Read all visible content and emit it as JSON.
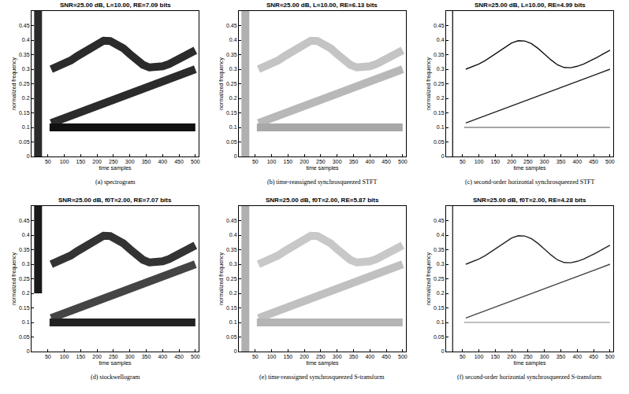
{
  "chart_data": [
    {
      "type": "line",
      "title": "SNR=25.00 dB, L=10.00, RE=7.09 bits",
      "caption": "(a) spectrogram",
      "x_label": "time samples",
      "y_label": "normalized frequency",
      "line_style": "broad",
      "grid": false,
      "xlim": [
        0,
        510
      ],
      "ylim": [
        0,
        0.5
      ],
      "xticks": [
        50,
        100,
        150,
        200,
        250,
        300,
        350,
        400,
        450,
        500
      ],
      "yticks": [
        0,
        0.05,
        0.1,
        0.15,
        0.2,
        0.25,
        0.3,
        0.35,
        0.4,
        0.45
      ],
      "series": [
        {
          "color": "#2b2b2b",
          "x": [
            20,
            20
          ],
          "values": [
            0,
            0.5
          ]
        },
        {
          "color": "#2b2b2b",
          "x": [
            60,
            80,
            100,
            120,
            140,
            160,
            180,
            200,
            220,
            240,
            260,
            280,
            300,
            320,
            340,
            360,
            380,
            400,
            420,
            440,
            460,
            480,
            500
          ],
          "values": [
            0.3,
            0.308,
            0.318,
            0.33,
            0.345,
            0.36,
            0.375,
            0.39,
            0.398,
            0.397,
            0.388,
            0.372,
            0.352,
            0.332,
            0.315,
            0.306,
            0.305,
            0.31,
            0.318,
            0.328,
            0.34,
            0.353,
            0.365
          ]
        },
        {
          "color": "#2b2b2b",
          "x": [
            60,
            500
          ],
          "values": [
            0.115,
            0.3
          ]
        },
        {
          "color": "#111111",
          "x": [
            55,
            500
          ],
          "values": [
            0.1,
            0.1
          ]
        }
      ]
    },
    {
      "type": "line",
      "title": "SNR=25.00 dB, L=10.00, RE=6.13 bits",
      "caption": "(b) time-reassigned synchrosqueezed STFT",
      "x_label": "time samples",
      "y_label": "normalized frequency",
      "line_style": "broad",
      "grid": false,
      "xlim": [
        0,
        510
      ],
      "ylim": [
        0,
        0.5
      ],
      "xticks": [
        50,
        100,
        150,
        200,
        250,
        300,
        350,
        400,
        450,
        500
      ],
      "yticks": [
        0,
        0.05,
        0.1,
        0.15,
        0.2,
        0.25,
        0.3,
        0.35,
        0.4,
        0.45
      ],
      "series": [
        {
          "color": "#b0b0b0",
          "x": [
            20,
            20
          ],
          "values": [
            0,
            0.5
          ]
        },
        {
          "color": "#c4c4c4",
          "x": [
            60,
            80,
            100,
            120,
            140,
            160,
            180,
            200,
            220,
            240,
            260,
            280,
            300,
            320,
            340,
            360,
            380,
            400,
            420,
            440,
            460,
            480,
            500
          ],
          "values": [
            0.3,
            0.308,
            0.318,
            0.33,
            0.345,
            0.36,
            0.375,
            0.39,
            0.398,
            0.397,
            0.388,
            0.372,
            0.352,
            0.332,
            0.315,
            0.306,
            0.305,
            0.31,
            0.318,
            0.328,
            0.34,
            0.353,
            0.365
          ]
        },
        {
          "color": "#b8b8b8",
          "x": [
            60,
            500
          ],
          "values": [
            0.115,
            0.3
          ]
        },
        {
          "color": "#a8a8a8",
          "x": [
            55,
            500
          ],
          "values": [
            0.1,
            0.1
          ]
        }
      ]
    },
    {
      "type": "line",
      "title": "SNR=25.00 dB, L=10.00, RE=4.99 bits",
      "caption": "(c) second-order horizontal synchrosqueezed STFT",
      "x_label": "time samples",
      "y_label": "normalized frequency",
      "line_style": "fine",
      "grid": false,
      "xlim": [
        0,
        510
      ],
      "ylim": [
        0,
        0.5
      ],
      "xticks": [
        50,
        100,
        150,
        200,
        250,
        300,
        350,
        400,
        450,
        500
      ],
      "yticks": [
        0,
        0.05,
        0.1,
        0.15,
        0.2,
        0.25,
        0.3,
        0.35,
        0.4,
        0.45
      ],
      "series": [
        {
          "color": "#222222",
          "x": [
            20,
            20
          ],
          "values": [
            0,
            0.5
          ]
        },
        {
          "color": "#111111",
          "x": [
            60,
            80,
            100,
            120,
            140,
            160,
            180,
            200,
            220,
            240,
            260,
            280,
            300,
            320,
            340,
            360,
            380,
            400,
            420,
            440,
            460,
            480,
            500
          ],
          "values": [
            0.3,
            0.308,
            0.318,
            0.33,
            0.345,
            0.36,
            0.375,
            0.39,
            0.398,
            0.397,
            0.388,
            0.372,
            0.352,
            0.332,
            0.315,
            0.306,
            0.305,
            0.31,
            0.318,
            0.328,
            0.34,
            0.353,
            0.365
          ]
        },
        {
          "color": "#222222",
          "x": [
            60,
            500
          ],
          "values": [
            0.115,
            0.3
          ]
        },
        {
          "color": "#888888",
          "x": [
            55,
            500
          ],
          "values": [
            0.1,
            0.1
          ]
        }
      ]
    },
    {
      "type": "line",
      "title": "SNR=25.00 dB, f0T=2.00, RE=7.07 bits",
      "caption": "(d) stockwellogram",
      "x_label": "time samples",
      "y_label": "normalized frequency",
      "line_style": "broad",
      "grid": false,
      "xlim": [
        0,
        510
      ],
      "ylim": [
        0,
        0.5
      ],
      "xticks": [
        50,
        100,
        150,
        200,
        250,
        300,
        350,
        400,
        450,
        500
      ],
      "yticks": [
        0,
        0.05,
        0.1,
        0.15,
        0.2,
        0.25,
        0.3,
        0.35,
        0.4,
        0.45
      ],
      "series": [
        {
          "color": "#1a1a1a",
          "x": [
            20,
            20
          ],
          "values": [
            0.2,
            0.5
          ]
        },
        {
          "color": "#333333",
          "x": [
            60,
            80,
            100,
            120,
            140,
            160,
            180,
            200,
            220,
            240,
            260,
            280,
            300,
            320,
            340,
            360,
            380,
            400,
            420,
            440,
            460,
            480,
            500
          ],
          "values": [
            0.3,
            0.308,
            0.318,
            0.33,
            0.345,
            0.36,
            0.375,
            0.39,
            0.398,
            0.397,
            0.388,
            0.372,
            0.352,
            0.332,
            0.315,
            0.306,
            0.305,
            0.31,
            0.318,
            0.328,
            0.34,
            0.353,
            0.365
          ]
        },
        {
          "color": "#444444",
          "x": [
            60,
            500
          ],
          "values": [
            0.115,
            0.3
          ]
        },
        {
          "color": "#222222",
          "x": [
            55,
            500
          ],
          "values": [
            0.1,
            0.1
          ]
        }
      ]
    },
    {
      "type": "line",
      "title": "SNR=25.00 dB, f0T=2.00, RE=5.87 bits",
      "caption": "(e) time-reassigned synchrosqueezed S-transform",
      "x_label": "time samples",
      "y_label": "normalized frequency",
      "line_style": "broad",
      "grid": false,
      "xlim": [
        0,
        510
      ],
      "ylim": [
        0,
        0.5
      ],
      "xticks": [
        50,
        100,
        150,
        200,
        250,
        300,
        350,
        400,
        450,
        500
      ],
      "yticks": [
        0,
        0.05,
        0.1,
        0.15,
        0.2,
        0.25,
        0.3,
        0.35,
        0.4,
        0.45
      ],
      "series": [
        {
          "color": "#b0b0b0",
          "x": [
            20,
            20
          ],
          "values": [
            0,
            0.5
          ]
        },
        {
          "color": "#c8c8c8",
          "x": [
            60,
            80,
            100,
            120,
            140,
            160,
            180,
            200,
            220,
            240,
            260,
            280,
            300,
            320,
            340,
            360,
            380,
            400,
            420,
            440,
            460,
            480,
            500
          ],
          "values": [
            0.3,
            0.308,
            0.318,
            0.33,
            0.345,
            0.36,
            0.375,
            0.39,
            0.398,
            0.397,
            0.388,
            0.372,
            0.352,
            0.332,
            0.315,
            0.306,
            0.305,
            0.31,
            0.318,
            0.328,
            0.34,
            0.353,
            0.365
          ]
        },
        {
          "color": "#c0c0c0",
          "x": [
            60,
            500
          ],
          "values": [
            0.115,
            0.3
          ]
        },
        {
          "color": "#b4b4b4",
          "x": [
            55,
            500
          ],
          "values": [
            0.1,
            0.1
          ]
        }
      ]
    },
    {
      "type": "line",
      "title": "SNR=25.00 dB, f0T=2.00, RE=4.28 bits",
      "caption": "(f) second-order horizontal synchrosqueezed S-transform",
      "x_label": "time samples",
      "y_label": "normalized frequency",
      "line_style": "fine",
      "grid": false,
      "xlim": [
        0,
        510
      ],
      "ylim": [
        0,
        0.5
      ],
      "xticks": [
        50,
        100,
        150,
        200,
        250,
        300,
        350,
        400,
        450,
        500
      ],
      "yticks": [
        0,
        0.05,
        0.1,
        0.15,
        0.2,
        0.25,
        0.3,
        0.35,
        0.4,
        0.45
      ],
      "series": [
        {
          "color": "#333333",
          "x": [
            20,
            20
          ],
          "values": [
            0,
            0.5
          ]
        },
        {
          "color": "#222222",
          "x": [
            60,
            80,
            100,
            120,
            140,
            160,
            180,
            200,
            220,
            240,
            260,
            280,
            300,
            320,
            340,
            360,
            380,
            400,
            420,
            440,
            460,
            480,
            500
          ],
          "values": [
            0.3,
            0.308,
            0.318,
            0.33,
            0.345,
            0.36,
            0.375,
            0.39,
            0.398,
            0.397,
            0.388,
            0.372,
            0.352,
            0.332,
            0.315,
            0.306,
            0.305,
            0.31,
            0.318,
            0.328,
            0.34,
            0.353,
            0.365
          ]
        },
        {
          "color": "#444444",
          "x": [
            60,
            500
          ],
          "values": [
            0.115,
            0.3
          ]
        },
        {
          "color": "#aaaaaa",
          "x": [
            55,
            500
          ],
          "values": [
            0.1,
            0.1
          ]
        }
      ]
    }
  ]
}
